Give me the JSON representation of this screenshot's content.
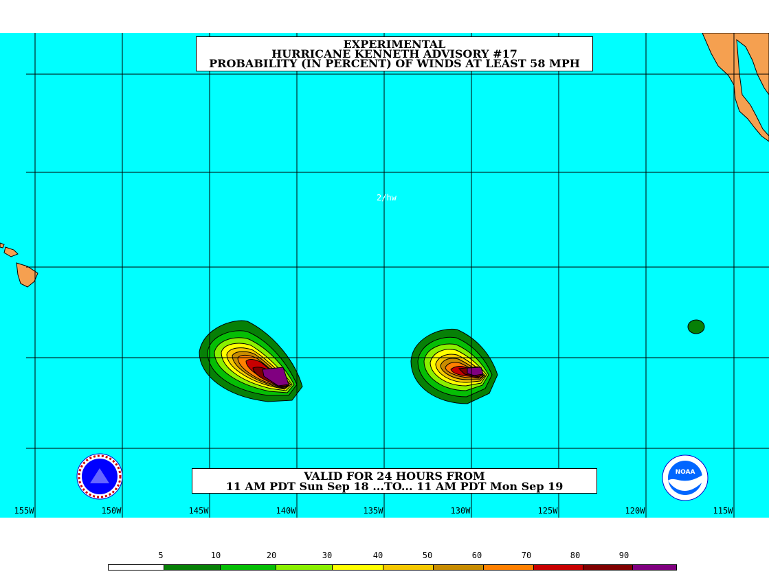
{
  "title": {
    "line1": "EXPERIMENTAL",
    "line2": "HURRICANE KENNETH ADVISORY #17",
    "line3": "PROBABILITY (IN PERCENT) OF WINDS AT LEAST 58 MPH"
  },
  "valid": {
    "line1": "VALID FOR 24 HOURS FROM",
    "line2": "11 AM PDT Sun Sep 18 ...TO... 11 AM PDT Mon Sep 19"
  },
  "watermark": "2/hw",
  "longitudes": [
    "155W",
    "150W",
    "145W",
    "140W",
    "135W",
    "130W",
    "125W",
    "120W",
    "115W"
  ],
  "legend": {
    "ticks": [
      "5",
      "10",
      "20",
      "30",
      "40",
      "50",
      "60",
      "70",
      "80",
      "90"
    ],
    "colors": [
      "#ffffff",
      "#078007",
      "#05be05",
      "#8af000",
      "#ffff00",
      "#f5c800",
      "#c88c00",
      "#ff8000",
      "#c80000",
      "#800000",
      "#800080"
    ]
  },
  "colors": {
    "ocean": "#00ffff",
    "land": "#f5a050",
    "grid": "#000000"
  },
  "logos": {
    "left": "nws-logo",
    "right": "noaa-logo"
  }
}
